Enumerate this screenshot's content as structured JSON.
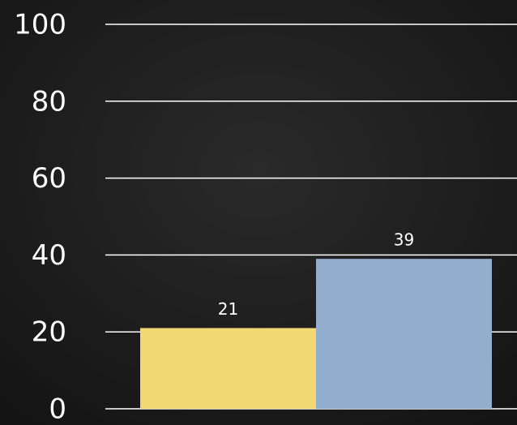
{
  "chart_data": {
    "type": "bar",
    "categories": [
      null,
      null
    ],
    "values": [
      21,
      39
    ],
    "colors": [
      "#f1d872",
      "#93adcf"
    ],
    "ylim": [
      0,
      100
    ],
    "yticks": [
      0,
      20,
      40,
      60,
      80,
      100
    ],
    "grid": true
  }
}
